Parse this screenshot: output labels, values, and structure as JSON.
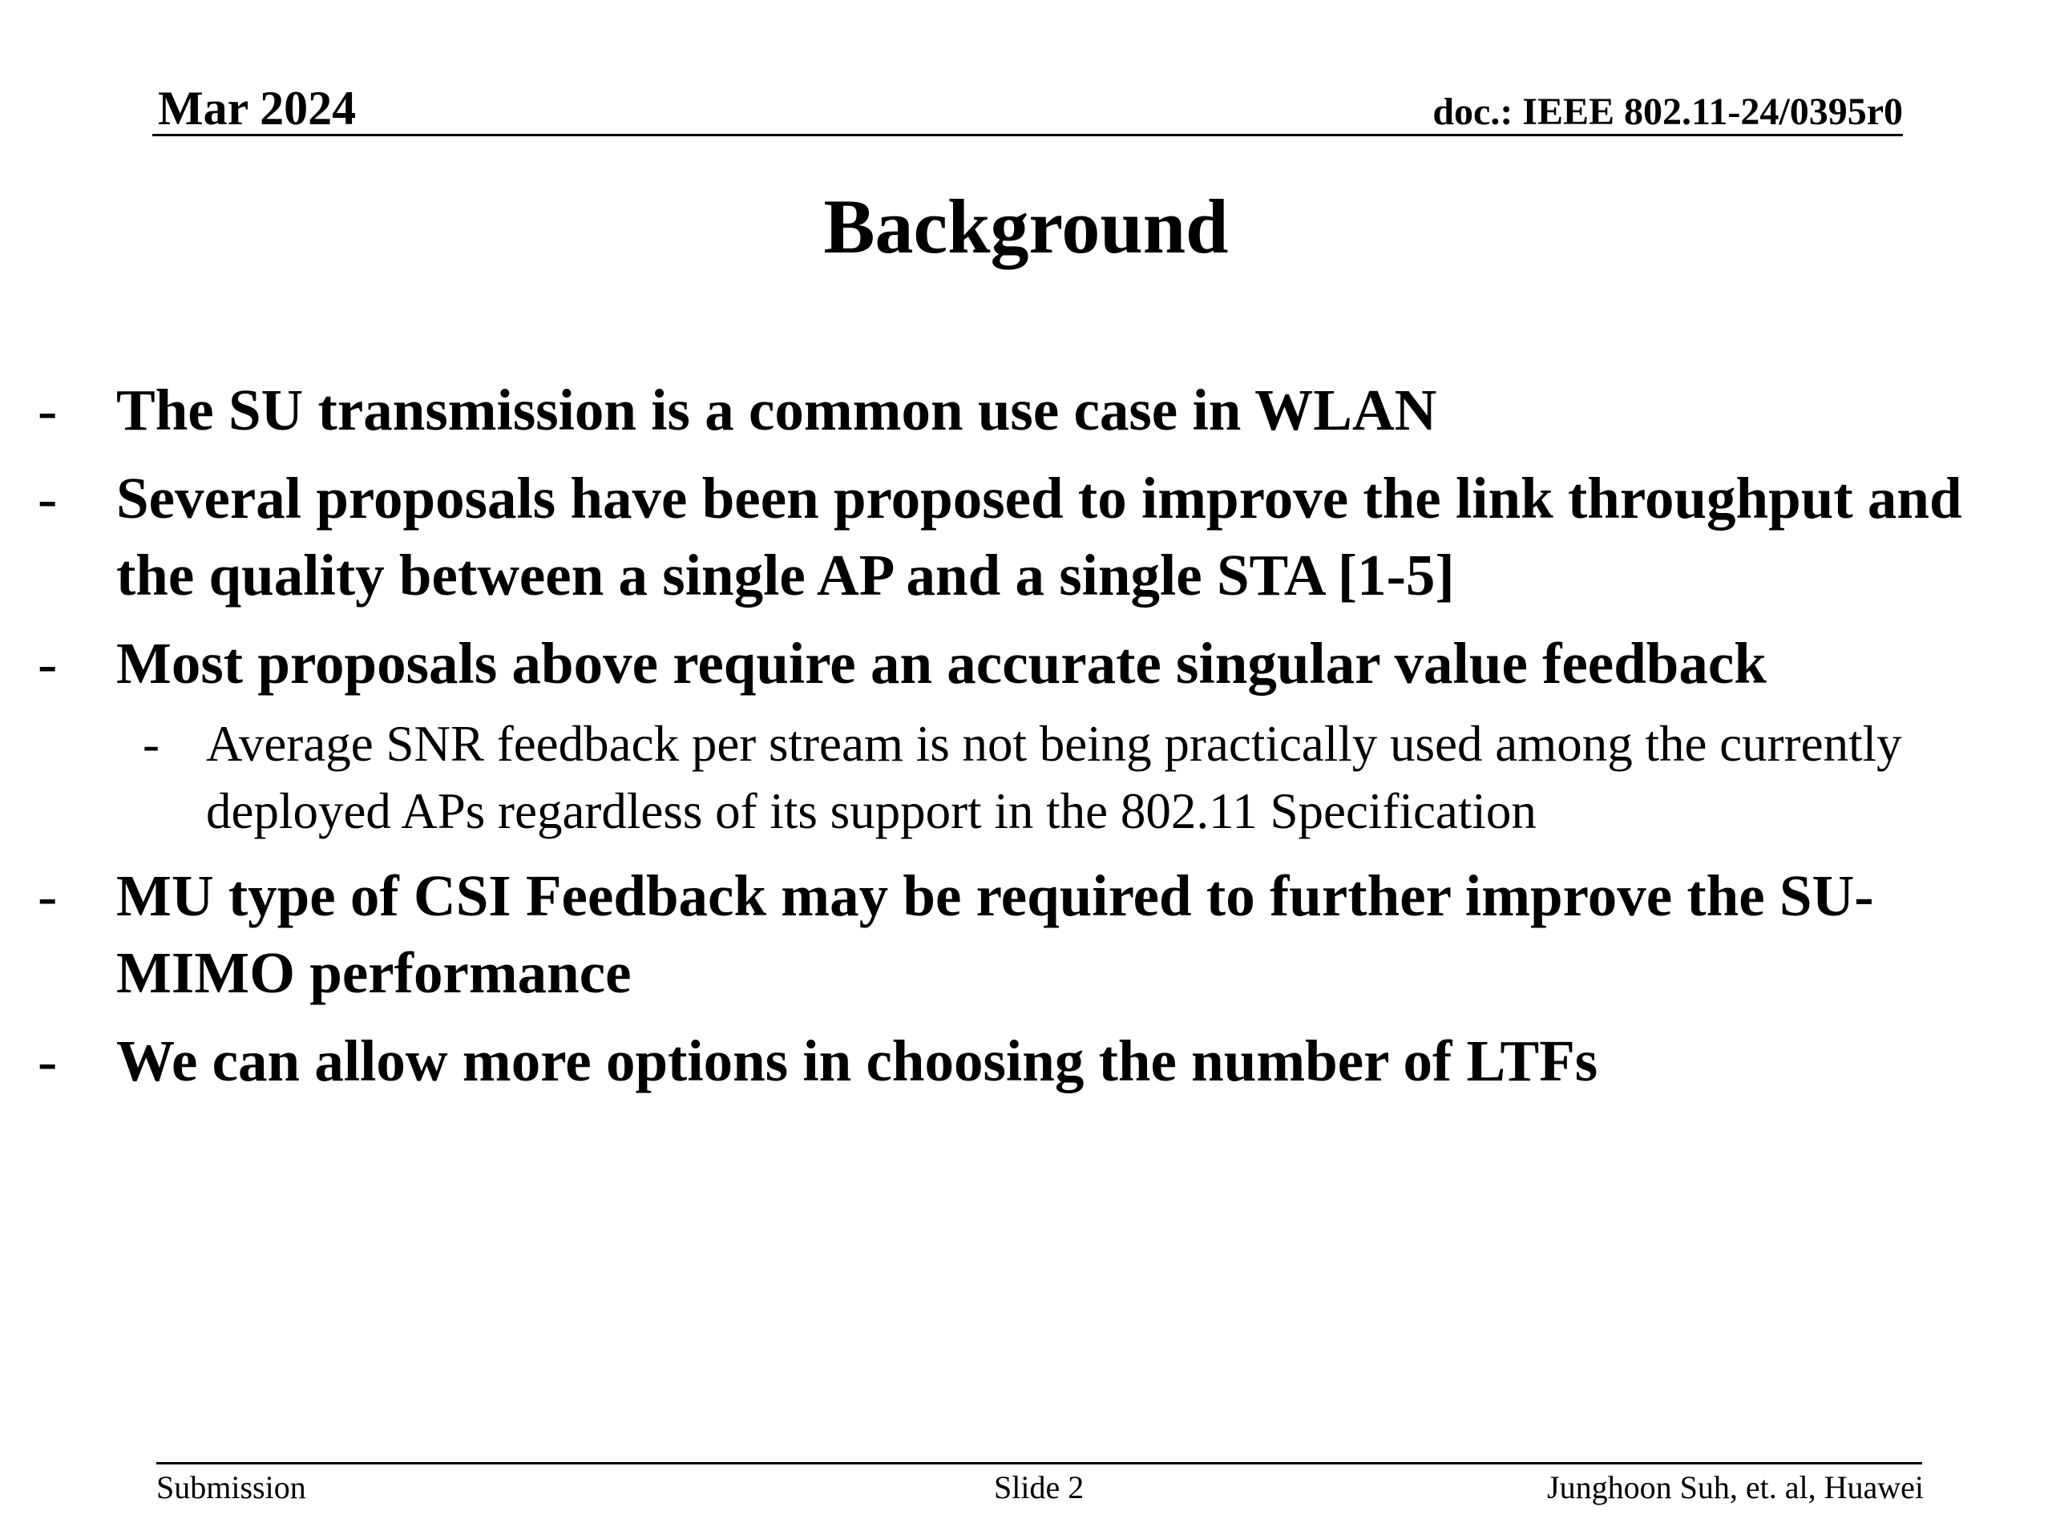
{
  "header": {
    "date": "Mar 2024",
    "doc_id": "doc.: IEEE 802.11-24/0395r0"
  },
  "slide": {
    "title": "Background",
    "bullets": [
      {
        "marker": "-",
        "text": "The SU transmission is a common use case in WLAN"
      },
      {
        "marker": "-",
        "text": "Several proposals have been proposed to improve the link throughput and the quality between a single AP and a single STA [1-5]"
      },
      {
        "marker": "-",
        "text": "Most proposals above require an accurate singular value feedback"
      },
      {
        "marker": "-",
        "text": "MU type of CSI Feedback may be required to further improve the SU-MIMO performance"
      },
      {
        "marker": "-",
        "text": "We can allow more options in choosing the number of LTFs"
      }
    ],
    "sub_bullets": [
      {
        "marker": "-",
        "text": "Average SNR feedback per stream is not being practically used among the currently deployed APs regardless of its support in the 802.11 Specification"
      }
    ]
  },
  "footer": {
    "left": "Submission",
    "center": "Slide 2",
    "right": "Junghoon Suh, et. al, Huawei"
  }
}
